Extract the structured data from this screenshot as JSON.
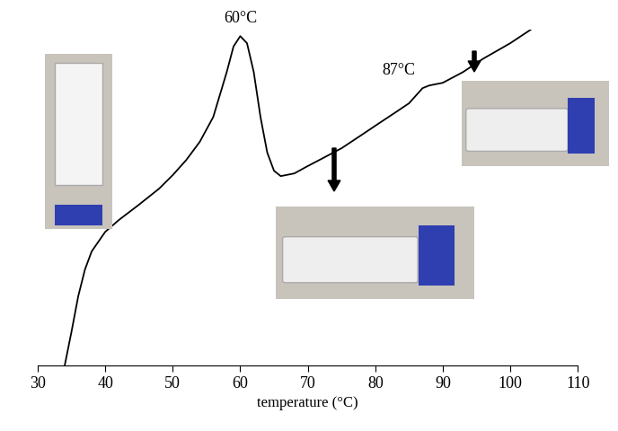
{
  "chart_data": {
    "type": "line",
    "x_label": "temperature (°C)",
    "x": [
      34,
      35,
      36,
      37,
      38,
      40,
      42,
      45,
      48,
      50,
      52,
      54,
      56,
      58,
      59,
      60,
      61,
      62,
      63,
      64,
      65,
      66,
      68,
      70,
      72,
      75,
      78,
      80,
      83,
      85,
      87,
      88,
      90,
      93,
      96,
      100,
      103
    ],
    "values": [
      0,
      10,
      20.6,
      28.6,
      34,
      39.8,
      43.3,
      47.9,
      52.7,
      56.7,
      61.2,
      66.6,
      74,
      87.4,
      95,
      98.1,
      96,
      87.4,
      74,
      63.4,
      58,
      56.4,
      57.2,
      59.4,
      61.5,
      64.7,
      68.7,
      71.4,
      75.4,
      78.1,
      82.6,
      83.4,
      84.2,
      87.4,
      91.4,
      96,
      100
    ],
    "color": "#000000",
    "xlim": [
      30,
      110
    ],
    "xticks": [
      30,
      40,
      50,
      60,
      70,
      80,
      90,
      100,
      110
    ],
    "ylim": [
      0,
      100
    ],
    "tick_labels": "x",
    "annotations": [
      {
        "text": "60°C",
        "x": 60
      },
      {
        "text": "87°C",
        "x": 87
      }
    ]
  }
}
